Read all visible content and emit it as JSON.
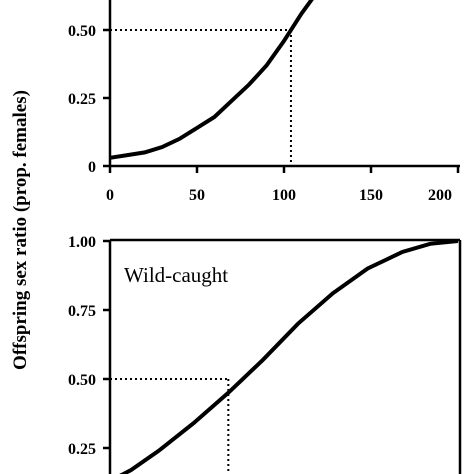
{
  "chart_data": [
    {
      "type": "line",
      "panel": "top",
      "title": "",
      "ylabel": "Offspring sex ratio (prop. females)",
      "xlim": [
        0,
        200
      ],
      "ylim": [
        0,
        0.75
      ],
      "x_ticks": [
        "0",
        "50",
        "100",
        "150",
        "200"
      ],
      "y_ticks": [
        "0",
        "0.25",
        "0.50"
      ],
      "reference": {
        "x": 104,
        "y": 0.5
      },
      "x": [
        0,
        10,
        20,
        30,
        40,
        50,
        60,
        70,
        80,
        90,
        100,
        110,
        118
      ],
      "y": [
        0.03,
        0.04,
        0.05,
        0.07,
        0.1,
        0.14,
        0.18,
        0.24,
        0.3,
        0.37,
        0.46,
        0.56,
        0.63
      ]
    },
    {
      "type": "line",
      "panel": "bottom",
      "title": "",
      "annotation": "Wild-caught",
      "ylim": [
        0,
        1.0
      ],
      "y_ticks": [
        "0.25",
        "0.50",
        "0.75",
        "1.00"
      ],
      "reference": {
        "y": 0.5
      },
      "x": [
        0.0,
        0.06,
        0.14,
        0.24,
        0.34,
        0.44,
        0.54,
        0.64,
        0.74,
        0.84,
        0.92,
        1.0
      ],
      "y": [
        0.13,
        0.17,
        0.24,
        0.34,
        0.45,
        0.57,
        0.7,
        0.81,
        0.9,
        0.96,
        0.99,
        1.0
      ]
    }
  ]
}
